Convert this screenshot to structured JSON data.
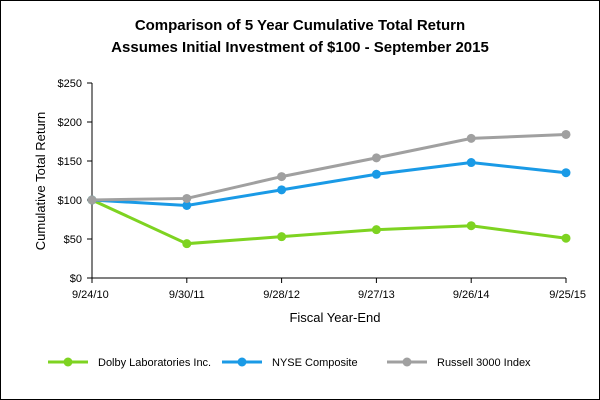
{
  "chart_data": {
    "type": "line",
    "title": "Comparison of 5 Year Cumulative Total Return",
    "subtitle": "Assumes Initial Investment of $100 - September 2015",
    "xlabel": "Fiscal Year-End",
    "ylabel": "Cumulative Total Return",
    "categories": [
      "9/24/10",
      "9/30/11",
      "9/28/12",
      "9/27/13",
      "9/26/14",
      "9/25/15"
    ],
    "ylim": [
      0,
      250
    ],
    "yticks": [
      0,
      50,
      100,
      150,
      200,
      250
    ],
    "ytick_labels": [
      "$0",
      "$50",
      "$100",
      "$150",
      "$200",
      "$250"
    ],
    "grid": false,
    "legend_position": "bottom",
    "series": [
      {
        "name": "Dolby Laboratories Inc.",
        "color": "#7ed321",
        "values": [
          100,
          44,
          53,
          62,
          67,
          51
        ]
      },
      {
        "name": "NYSE Composite",
        "color": "#1a9ae6",
        "values": [
          100,
          93,
          113,
          133,
          148,
          135
        ]
      },
      {
        "name": "Russell 3000 Index",
        "color": "#a0a0a0",
        "values": [
          100,
          102,
          130,
          154,
          179,
          184
        ]
      }
    ]
  }
}
